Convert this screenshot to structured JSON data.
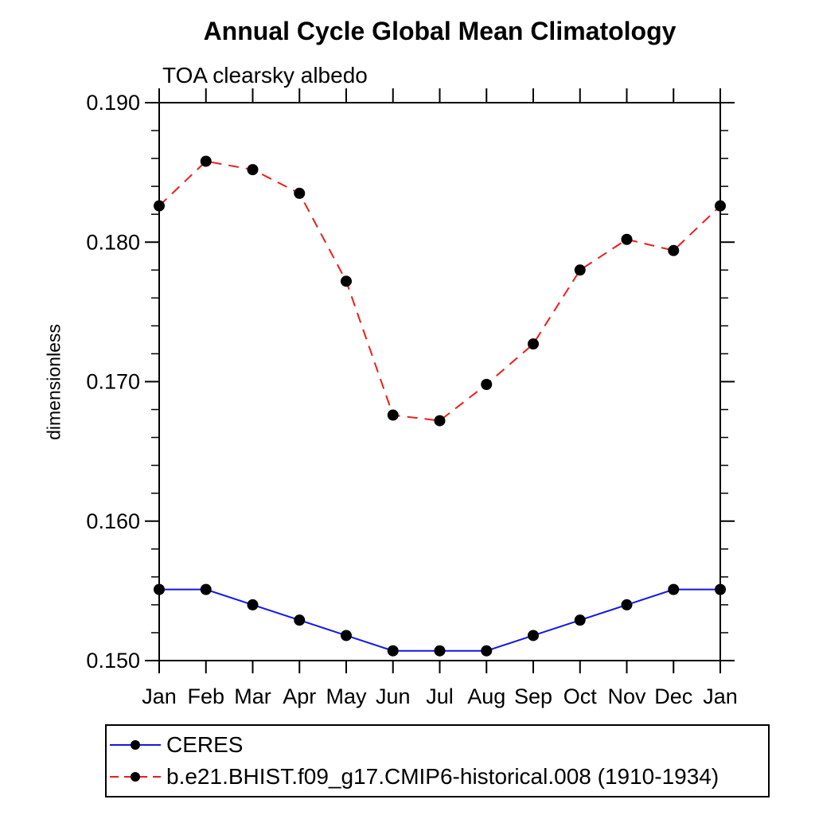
{
  "page": {
    "background": "#ffffff",
    "text_color": "#000000"
  },
  "chart_data": {
    "type": "line",
    "title": "Annual Cycle Global Mean Climatology",
    "subtitle": "TOA clearsky albedo",
    "ylabel": "dimensionless",
    "xlabel": "",
    "x_categories": [
      "Jan",
      "Feb",
      "Mar",
      "Apr",
      "May",
      "Jun",
      "Jul",
      "Aug",
      "Sep",
      "Oct",
      "Nov",
      "Dec",
      "Jan"
    ],
    "ylim": [
      0.15,
      0.19
    ],
    "y_major_ticks": [
      0.15,
      0.16,
      0.17,
      0.18,
      0.19
    ],
    "y_minor_step": 0.002,
    "y_tick_decimals": 3,
    "grid": false,
    "frame": "box-with-outward-ticks",
    "legend_position": "bottom-left",
    "marker": {
      "shape": "circle",
      "color": "#000000"
    },
    "series": [
      {
        "name": "CERES",
        "color": "#1515e8",
        "line_style": "solid",
        "values": [
          0.1551,
          0.1551,
          0.154,
          0.1529,
          0.1518,
          0.1507,
          0.1507,
          0.1507,
          0.1518,
          0.1529,
          0.154,
          0.1551,
          0.1551
        ]
      },
      {
        "name": "b.e21.BHIST.f09_g17.CMIP6-historical.008 (1910-1934)",
        "color": "#ee1c1c",
        "line_style": "dashed",
        "values": [
          0.1826,
          0.1858,
          0.1852,
          0.1835,
          0.1772,
          0.1676,
          0.1672,
          0.1698,
          0.1727,
          0.178,
          0.1802,
          0.1794,
          0.1826
        ]
      }
    ]
  }
}
